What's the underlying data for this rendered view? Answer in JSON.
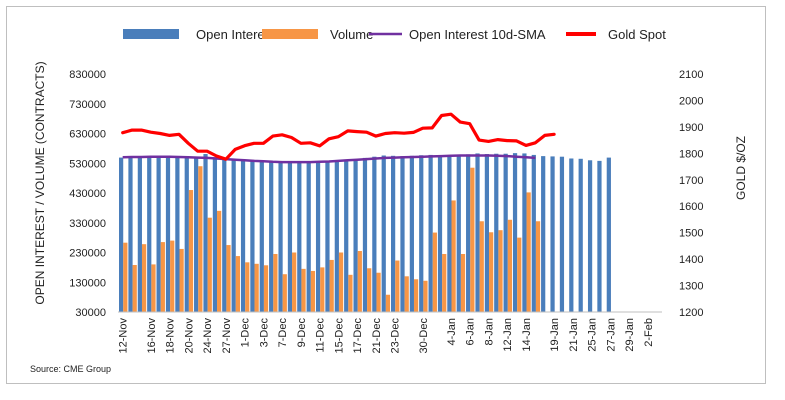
{
  "chart_data": {
    "type": "bar",
    "title": "",
    "source": "Source: CME Group",
    "ylabel_left": "OPEN INTEREST / VOLUME (CONTRACTS)",
    "ylabel_right": "GOLD $/OZ",
    "ylim_left": [
      30000,
      830000
    ],
    "ylim_right": [
      1200,
      2100
    ],
    "yticks_left": [
      "30000",
      "130000",
      "230000",
      "330000",
      "430000",
      "530000",
      "630000",
      "730000",
      "830000"
    ],
    "yticks_right": [
      "1200",
      "1300",
      "1400",
      "1500",
      "1600",
      "1700",
      "1800",
      "1900",
      "2000",
      "2100"
    ],
    "legend_placement": "top",
    "colors": {
      "open_interest": "#4a7ebb",
      "volume": "#f79646",
      "sma": "#7030a0",
      "gold_spot": "#ff0000"
    },
    "x_ticks": [
      "12-Nov",
      "16-Nov",
      "18-Nov",
      "20-Nov",
      "24-Nov",
      "27-Nov",
      "1-Dec",
      "3-Dec",
      "7-Dec",
      "9-Dec",
      "11-Dec",
      "15-Dec",
      "17-Dec",
      "21-Dec",
      "23-Dec",
      "30-Dec",
      "4-Jan",
      "6-Jan",
      "8-Jan",
      "12-Jan",
      "14-Jan",
      "19-Jan",
      "21-Jan",
      "25-Jan",
      "27-Jan",
      "29-Jan",
      "2-Feb"
    ],
    "x_tick_positions": [
      0,
      3,
      5,
      7,
      9,
      11,
      13,
      15,
      17,
      19,
      21,
      23,
      25,
      27,
      29,
      32,
      35,
      37,
      39,
      41,
      43,
      46,
      48,
      50,
      52,
      54,
      56
    ],
    "n_slots": 58,
    "series": [
      {
        "name": "Open Interest",
        "kind": "bar",
        "start": 0,
        "values": [
          549000,
          550000,
          550000,
          551000,
          551000,
          552000,
          551000,
          551000,
          549000,
          561000,
          550000,
          548000,
          546000,
          541000,
          538000,
          537000,
          535000,
          534000,
          534000,
          533000,
          532000,
          535000,
          534000,
          535000,
          537000,
          543000,
          548000,
          552000,
          556000,
          555000,
          554000,
          555000,
          557000,
          558000,
          555000,
          553000,
          557000,
          560000,
          563000,
          561000,
          562000,
          562000,
          564000,
          563000,
          558000,
          554000,
          553000,
          552000,
          546000,
          545000,
          540000,
          538000,
          549000
        ]
      },
      {
        "name": "Volume",
        "kind": "bar",
        "start": 0,
        "values": [
          263000,
          188000,
          258000,
          190000,
          265000,
          270000,
          242000,
          440000,
          520000,
          347000,
          370000,
          255000,
          218000,
          197000,
          192000,
          187000,
          225000,
          157000,
          230000,
          175000,
          168000,
          180000,
          205000,
          230000,
          155000,
          235000,
          177000,
          162000,
          88000,
          203000,
          150000,
          140000,
          135000,
          297000,
          225000,
          405000,
          225000,
          515000,
          335000,
          298000,
          305000,
          340000,
          280000,
          432000,
          335000
        ]
      },
      {
        "name": "Open Interest 10d-SMA",
        "kind": "line",
        "start": 0,
        "values": [
          550000,
          551000,
          551000,
          552000,
          552000,
          552000,
          551000,
          550000,
          549000,
          548000,
          546000,
          544000,
          542000,
          540000,
          538000,
          537000,
          535000,
          534000,
          534000,
          534000,
          534000,
          535000,
          536000,
          538000,
          540000,
          542000,
          544000,
          546000,
          548000,
          549000,
          550000,
          551000,
          552000,
          553000,
          554000,
          555000,
          556000,
          556000,
          556000,
          556000,
          555000,
          554000,
          552000,
          550000,
          548000
        ]
      },
      {
        "name": "Gold Spot",
        "kind": "line",
        "axis": "right",
        "start": 0,
        "values": [
          1878,
          1888,
          1888,
          1880,
          1875,
          1868,
          1872,
          1838,
          1808,
          1808,
          1790,
          1778,
          1815,
          1829,
          1838,
          1838,
          1865,
          1870,
          1860,
          1838,
          1840,
          1828,
          1855,
          1863,
          1885,
          1882,
          1880,
          1865,
          1875,
          1878,
          1876,
          1879,
          1895,
          1896,
          1943,
          1948,
          1918,
          1912,
          1850,
          1845,
          1852,
          1848,
          1847,
          1830,
          1840,
          1868,
          1872
        ]
      }
    ]
  }
}
